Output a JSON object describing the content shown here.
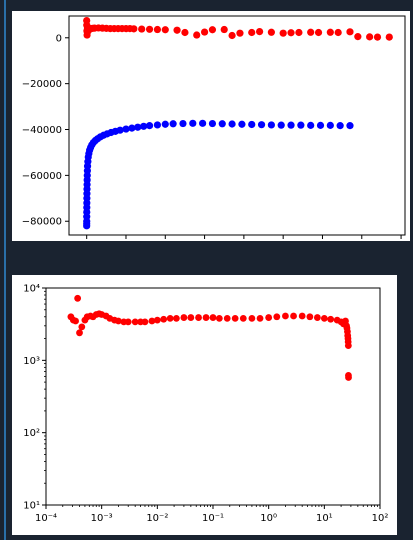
{
  "colors": {
    "series_red": "#ff0000",
    "series_blue": "#0000ff",
    "page_background": "#1a2330"
  },
  "chart_data": [
    {
      "type": "scatter",
      "title": "",
      "xlabel": "",
      "ylabel": "",
      "xlim": [
        -4.5,
        81
      ],
      "ylim": [
        -86000,
        9500
      ],
      "xticks": [
        0,
        10,
        20,
        30,
        40,
        50,
        60,
        70,
        80
      ],
      "yticks": [
        0,
        -20000,
        -40000,
        -60000,
        -80000
      ],
      "ytick_labels": [
        "0",
        "−20000",
        "−40000",
        "−60000",
        "−80000"
      ],
      "grid": false,
      "series": [
        {
          "color": "#ff0000",
          "points": [
            [
              0.0,
              7500
            ],
            [
              0.02,
              5500
            ],
            [
              0.05,
              3000
            ],
            [
              0.1,
              1200
            ],
            [
              0.2,
              4200
            ],
            [
              0.4,
              3000
            ],
            [
              0.7,
              4000
            ],
            [
              1,
              4000
            ],
            [
              1.5,
              4100
            ],
            [
              2,
              4200
            ],
            [
              3,
              4300
            ],
            [
              4,
              4200
            ],
            [
              5,
              4100
            ],
            [
              6,
              4000
            ],
            [
              7,
              4000
            ],
            [
              8,
              4000
            ],
            [
              9,
              4000
            ],
            [
              10,
              4000
            ],
            [
              11,
              4000
            ],
            [
              12,
              3900
            ],
            [
              14,
              3800
            ],
            [
              16,
              3700
            ],
            [
              18,
              3600
            ],
            [
              20,
              3500
            ],
            [
              23,
              3300
            ],
            [
              25,
              2300
            ],
            [
              28,
              1200
            ],
            [
              30,
              2500
            ],
            [
              32,
              3500
            ],
            [
              35,
              3600
            ],
            [
              37,
              1000
            ],
            [
              39,
              2000
            ],
            [
              42,
              2300
            ],
            [
              44,
              2700
            ],
            [
              47,
              2400
            ],
            [
              50,
              2000
            ],
            [
              52,
              2200
            ],
            [
              54,
              2300
            ],
            [
              57,
              2400
            ],
            [
              59,
              2300
            ],
            [
              62,
              2400
            ],
            [
              64,
              2300
            ],
            [
              67,
              2600
            ],
            [
              69,
              500
            ],
            [
              72,
              400
            ],
            [
              74,
              300
            ],
            [
              77,
              300
            ]
          ]
        },
        {
          "color": "#0000ff",
          "points": [
            [
              0.0,
              -82000
            ],
            [
              0.0,
              -81000
            ],
            [
              0.01,
              -80000
            ],
            [
              0.01,
              -78000
            ],
            [
              0.02,
              -76000
            ],
            [
              0.03,
              -74000
            ],
            [
              0.04,
              -72000
            ],
            [
              0.05,
              -70000
            ],
            [
              0.06,
              -68000
            ],
            [
              0.08,
              -66000
            ],
            [
              0.1,
              -64000
            ],
            [
              0.12,
              -62000
            ],
            [
              0.15,
              -60000
            ],
            [
              0.18,
              -58000
            ],
            [
              0.22,
              -56000
            ],
            [
              0.3,
              -54000
            ],
            [
              0.4,
              -52000
            ],
            [
              0.55,
              -50500
            ],
            [
              0.75,
              -49000
            ],
            [
              1.0,
              -47800
            ],
            [
              1.3,
              -46700
            ],
            [
              1.7,
              -45700
            ],
            [
              2.2,
              -44800
            ],
            [
              2.8,
              -44000
            ],
            [
              3.5,
              -43200
            ],
            [
              4.3,
              -42500
            ],
            [
              5.2,
              -41900
            ],
            [
              6.2,
              -41300
            ],
            [
              7.3,
              -40800
            ],
            [
              8.5,
              -40300
            ],
            [
              10,
              -39800
            ],
            [
              11.5,
              -39400
            ],
            [
              13,
              -39000
            ],
            [
              14.5,
              -38600
            ],
            [
              16,
              -38300
            ],
            [
              18,
              -38000
            ],
            [
              20,
              -37700
            ],
            [
              22,
              -37500
            ],
            [
              24.5,
              -37400
            ],
            [
              27,
              -37300
            ],
            [
              29.5,
              -37300
            ],
            [
              32,
              -37400
            ],
            [
              34.5,
              -37500
            ],
            [
              37,
              -37600
            ],
            [
              39.5,
              -37700
            ],
            [
              42,
              -37800
            ],
            [
              44.5,
              -37900
            ],
            [
              47,
              -38000
            ],
            [
              49.5,
              -38100
            ],
            [
              52,
              -38100
            ],
            [
              54.5,
              -38100
            ],
            [
              57,
              -38200
            ],
            [
              59.5,
              -38200
            ],
            [
              62,
              -38200
            ],
            [
              64.5,
              -38300
            ],
            [
              67,
              -38300
            ]
          ]
        }
      ]
    },
    {
      "type": "scatter",
      "title": "",
      "xlabel": "",
      "ylabel": "",
      "xscale": "log",
      "yscale": "log",
      "xlim": [
        0.0001,
        100
      ],
      "ylim": [
        10,
        10000
      ],
      "xtick_labels": [
        "10⁻⁴",
        "10⁻³",
        "10⁻²",
        "10⁻¹",
        "10⁰",
        "10¹",
        "10²"
      ],
      "ytick_labels": [
        "10¹",
        "10²",
        "10³",
        "10⁴"
      ],
      "grid": false,
      "series": [
        {
          "color": "#ff0000",
          "points": [
            [
              0.00028,
              4000
            ],
            [
              0.00031,
              3600
            ],
            [
              0.00034,
              3500
            ],
            [
              0.00037,
              7200
            ],
            [
              0.0004,
              2400
            ],
            [
              0.00044,
              2900
            ],
            [
              0.0005,
              3600
            ],
            [
              0.00055,
              4000
            ],
            [
              0.00063,
              4100
            ],
            [
              0.0007,
              4000
            ],
            [
              0.0008,
              4300
            ],
            [
              0.0009,
              4400
            ],
            [
              0.001,
              4300
            ],
            [
              0.0012,
              4100
            ],
            [
              0.0014,
              3800
            ],
            [
              0.0017,
              3600
            ],
            [
              0.002,
              3500
            ],
            [
              0.0025,
              3400
            ],
            [
              0.003,
              3400
            ],
            [
              0.004,
              3400
            ],
            [
              0.005,
              3400
            ],
            [
              0.006,
              3400
            ],
            [
              0.008,
              3500
            ],
            [
              0.01,
              3600
            ],
            [
              0.013,
              3700
            ],
            [
              0.017,
              3800
            ],
            [
              0.022,
              3800
            ],
            [
              0.03,
              3900
            ],
            [
              0.04,
              3900
            ],
            [
              0.055,
              3900
            ],
            [
              0.075,
              3900
            ],
            [
              0.1,
              3900
            ],
            [
              0.13,
              3800
            ],
            [
              0.18,
              3800
            ],
            [
              0.25,
              3800
            ],
            [
              0.35,
              3800
            ],
            [
              0.5,
              3800
            ],
            [
              0.7,
              3800
            ],
            [
              1.0,
              3900
            ],
            [
              1.4,
              4000
            ],
            [
              2.0,
              4100
            ],
            [
              2.8,
              4100
            ],
            [
              4,
              4100
            ],
            [
              5.5,
              4000
            ],
            [
              7.5,
              3900
            ],
            [
              10,
              3800
            ],
            [
              13,
              3700
            ],
            [
              17,
              3600
            ],
            [
              20,
              3400
            ],
            [
              22,
              3200
            ],
            [
              24,
              3500
            ],
            [
              25,
              3000
            ],
            [
              25.5,
              2800
            ],
            [
              26,
              2500
            ],
            [
              26.3,
              2200
            ],
            [
              26.6,
              2000
            ],
            [
              26.8,
              1800
            ],
            [
              27,
              1600
            ],
            [
              27.1,
              620
            ],
            [
              27.2,
              580
            ]
          ]
        }
      ]
    }
  ]
}
